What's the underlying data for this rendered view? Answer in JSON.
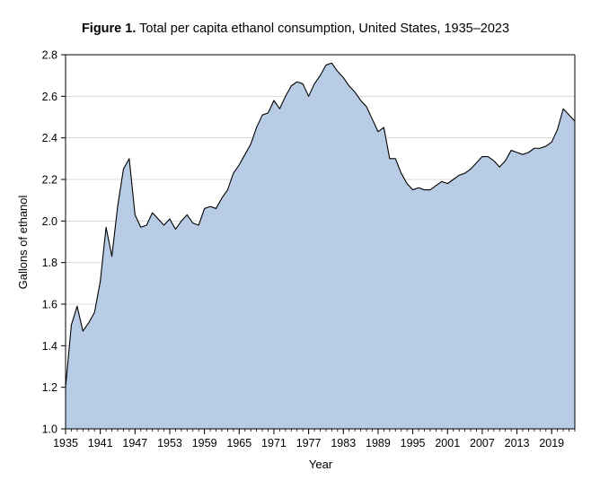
{
  "chart_data": {
    "type": "area",
    "title_bold": "Figure 1.",
    "title_rest": " Total per capita ethanol consumption, United States, 1935–2023",
    "xlabel": "Year",
    "ylabel": "Gallons of ethanol",
    "xlim": [
      1935,
      2023
    ],
    "ylim": [
      1.0,
      2.8
    ],
    "yticks": [
      1.0,
      1.2,
      1.4,
      1.6,
      1.8,
      2.0,
      2.2,
      2.4,
      2.6,
      2.8
    ],
    "ytick_labels": [
      "1.0",
      "1.2",
      "1.4",
      "1.6",
      "1.8",
      "2.0",
      "2.2",
      "2.4",
      "2.6",
      "2.8"
    ],
    "xticks": [
      1935,
      1941,
      1947,
      1953,
      1959,
      1965,
      1971,
      1977,
      1983,
      1989,
      1995,
      2001,
      2007,
      2013,
      2019
    ],
    "xtick_labels": [
      "1935",
      "1941",
      "1947",
      "1953",
      "1959",
      "1965",
      "1971",
      "1977",
      "1983",
      "1989",
      "1995",
      "2001",
      "2007",
      "2013",
      "2019"
    ],
    "grid": "horizontal",
    "fill_color": "#b8cde5",
    "line_color": "#000000",
    "grid_color": "#d9d9d9",
    "x": [
      1935,
      1936,
      1937,
      1938,
      1939,
      1940,
      1941,
      1942,
      1943,
      1944,
      1945,
      1946,
      1947,
      1948,
      1949,
      1950,
      1951,
      1952,
      1953,
      1954,
      1955,
      1956,
      1957,
      1958,
      1959,
      1960,
      1961,
      1962,
      1963,
      1964,
      1965,
      1966,
      1967,
      1968,
      1969,
      1970,
      1971,
      1972,
      1973,
      1974,
      1975,
      1976,
      1977,
      1978,
      1979,
      1980,
      1981,
      1982,
      1983,
      1984,
      1985,
      1986,
      1987,
      1988,
      1989,
      1990,
      1991,
      1992,
      1993,
      1994,
      1995,
      1996,
      1997,
      1998,
      1999,
      2000,
      2001,
      2002,
      2003,
      2004,
      2005,
      2006,
      2007,
      2008,
      2009,
      2010,
      2011,
      2012,
      2013,
      2014,
      2015,
      2016,
      2017,
      2018,
      2019,
      2020,
      2021,
      2022,
      2023
    ],
    "y": [
      1.2,
      1.5,
      1.59,
      1.47,
      1.51,
      1.56,
      1.71,
      1.97,
      1.83,
      2.07,
      2.25,
      2.3,
      2.03,
      1.97,
      1.98,
      2.04,
      2.01,
      1.98,
      2.01,
      1.96,
      2.0,
      2.03,
      1.99,
      1.98,
      2.06,
      2.07,
      2.06,
      2.11,
      2.15,
      2.23,
      2.27,
      2.32,
      2.37,
      2.45,
      2.51,
      2.52,
      2.58,
      2.54,
      2.6,
      2.65,
      2.67,
      2.66,
      2.6,
      2.66,
      2.7,
      2.75,
      2.76,
      2.72,
      2.69,
      2.65,
      2.62,
      2.58,
      2.55,
      2.49,
      2.43,
      2.45,
      2.3,
      2.3,
      2.23,
      2.18,
      2.15,
      2.16,
      2.15,
      2.15,
      2.17,
      2.19,
      2.18,
      2.2,
      2.22,
      2.23,
      2.25,
      2.28,
      2.31,
      2.31,
      2.29,
      2.26,
      2.29,
      2.34,
      2.33,
      2.32,
      2.33,
      2.35,
      2.35,
      2.36,
      2.38,
      2.44,
      2.54,
      2.51,
      2.48
    ]
  }
}
